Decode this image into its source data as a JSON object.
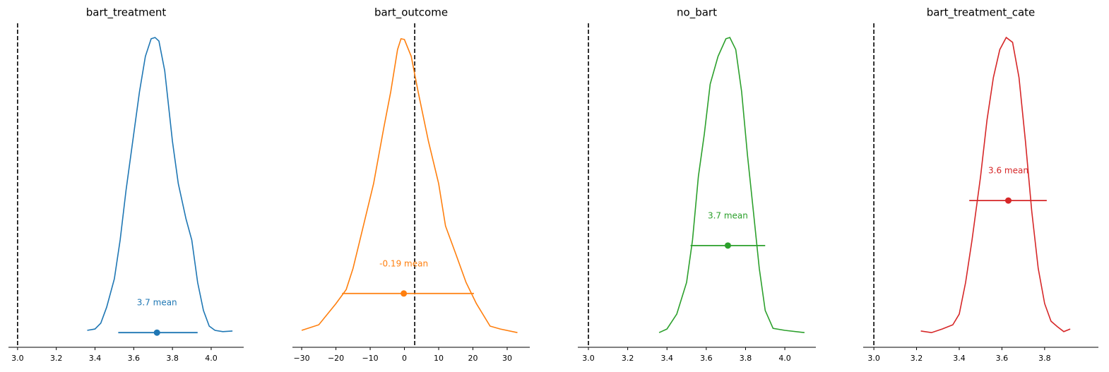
{
  "chart_data": [
    {
      "type": "density",
      "title": "bart_treatment",
      "color": "#1f77b4",
      "x": [
        3.36,
        3.4,
        3.43,
        3.46,
        3.5,
        3.53,
        3.56,
        3.6,
        3.63,
        3.66,
        3.69,
        3.71,
        3.73,
        3.76,
        3.8,
        3.83,
        3.87,
        3.9,
        3.93,
        3.96,
        3.99,
        4.02,
        4.06,
        4.11
      ],
      "values": [
        0.052,
        0.056,
        0.074,
        0.123,
        0.21,
        0.329,
        0.481,
        0.654,
        0.784,
        0.892,
        0.946,
        0.95,
        0.939,
        0.848,
        0.632,
        0.502,
        0.394,
        0.329,
        0.199,
        0.113,
        0.065,
        0.052,
        0.048,
        0.05
      ],
      "mean": 3.72,
      "mean_label": "3.7 mean",
      "hdi": [
        3.52,
        3.93
      ],
      "interval_y": 0.045,
      "ref_val": 3,
      "xlim": [
        2.953,
        4.168
      ],
      "ylim": [
        0,
        1
      ],
      "xticks": [
        {
          "value": 3,
          "label": "3.0"
        },
        3.2,
        3.4,
        3.6,
        3.8,
        {
          "value": 4,
          "label": "4.0"
        }
      ]
    },
    {
      "type": "density",
      "title": "bart_outcome",
      "color": "#ff7f0e",
      "x": [
        -30,
        -25,
        -20,
        -17,
        -15,
        -12,
        -9,
        -6,
        -4,
        -2,
        -1,
        0,
        2,
        4,
        7,
        10,
        12,
        15,
        18,
        21,
        25,
        28,
        33
      ],
      "values": [
        0.052,
        0.069,
        0.134,
        0.177,
        0.242,
        0.372,
        0.502,
        0.675,
        0.784,
        0.913,
        0.946,
        0.944,
        0.892,
        0.784,
        0.632,
        0.502,
        0.372,
        0.286,
        0.199,
        0.134,
        0.065,
        0.056,
        0.045
      ],
      "mean": -0.19,
      "mean_label": "-0.19 mean",
      "hdi": [
        -18.2,
        20.3
      ],
      "interval_y": 0.165,
      "ref_val": 3,
      "xlim": [
        -32.7,
        36.6
      ],
      "ylim": [
        0,
        1
      ],
      "xticks": [
        {
          "value": -30,
          "label": "−30"
        },
        {
          "value": -20,
          "label": "−20"
        },
        {
          "value": -10,
          "label": "−10"
        },
        0,
        10,
        20,
        30
      ]
    },
    {
      "type": "density",
      "title": "no_bart",
      "color": "#2ca02c",
      "x": [
        3.36,
        3.4,
        3.45,
        3.5,
        3.53,
        3.56,
        3.59,
        3.62,
        3.66,
        3.7,
        3.72,
        3.75,
        3.78,
        3.81,
        3.84,
        3.87,
        3.9,
        3.94,
        4.0,
        4.1
      ],
      "values": [
        0.045,
        0.056,
        0.102,
        0.199,
        0.329,
        0.524,
        0.654,
        0.807,
        0.892,
        0.946,
        0.95,
        0.913,
        0.784,
        0.589,
        0.416,
        0.242,
        0.113,
        0.058,
        0.052,
        0.045
      ],
      "mean": 3.71,
      "mean_label": "3.7 mean",
      "hdi": [
        3.52,
        3.9
      ],
      "interval_y": 0.312,
      "ref_val": 3,
      "xlim": [
        2.946,
        4.158
      ],
      "ylim": [
        0,
        1
      ],
      "xticks": [
        {
          "value": 3,
          "label": "3.0"
        },
        3.2,
        3.4,
        3.6,
        3.8,
        {
          "value": 4,
          "label": "4.0"
        }
      ]
    },
    {
      "type": "density",
      "title": "bart_treatment_cate",
      "color": "#d62728",
      "x": [
        3.22,
        3.27,
        3.32,
        3.37,
        3.4,
        3.43,
        3.46,
        3.5,
        3.53,
        3.56,
        3.59,
        3.62,
        3.65,
        3.68,
        3.71,
        3.74,
        3.77,
        3.8,
        3.83,
        3.86,
        3.89,
        3.92
      ],
      "values": [
        0.05,
        0.045,
        0.056,
        0.069,
        0.102,
        0.199,
        0.329,
        0.524,
        0.697,
        0.827,
        0.913,
        0.95,
        0.935,
        0.827,
        0.632,
        0.416,
        0.242,
        0.134,
        0.08,
        0.063,
        0.048,
        0.056
      ],
      "mean": 3.63,
      "mean_label": "3.6 mean",
      "hdi": [
        3.447,
        3.81
      ],
      "interval_y": 0.45,
      "ref_val": 3,
      "xlim": [
        2.95,
        4.052
      ],
      "ylim": [
        0,
        1
      ],
      "xticks": [
        {
          "value": 3,
          "label": "3.0"
        },
        3.2,
        3.4,
        3.6,
        3.8
      ]
    }
  ]
}
